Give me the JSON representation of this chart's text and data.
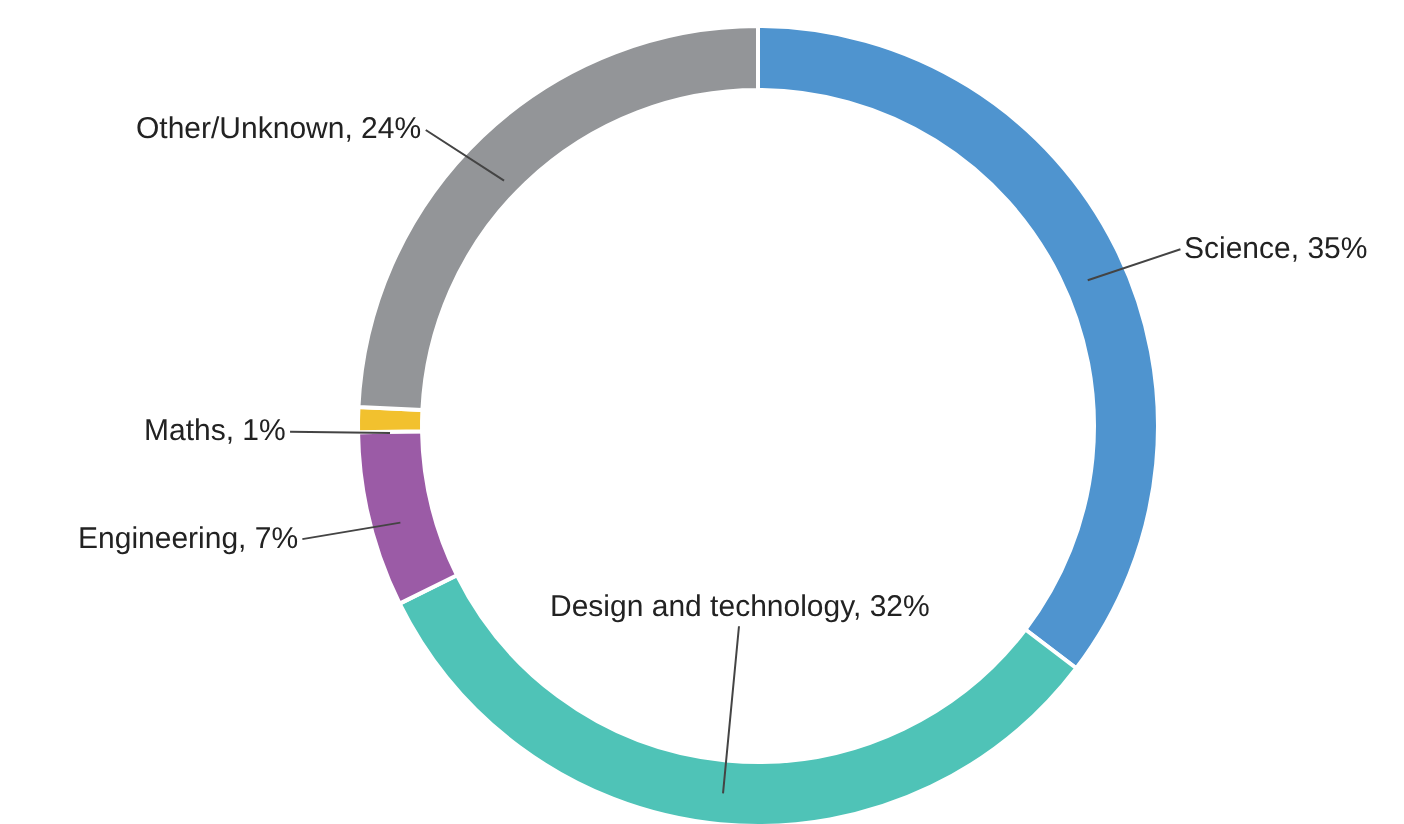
{
  "chart_data": {
    "type": "donut",
    "categories": [
      "Science",
      "Design and technology",
      "Engineering",
      "Maths",
      "Other/Unknown"
    ],
    "values": [
      35,
      32,
      7,
      1,
      24
    ],
    "value_labels": [
      "35%",
      "32%",
      "7%",
      "1%",
      "24%"
    ],
    "colors": [
      "#4f94cf",
      "#4fc3b7",
      "#9b5ba6",
      "#f2c12e",
      "#939598"
    ],
    "legend": false
  }
}
